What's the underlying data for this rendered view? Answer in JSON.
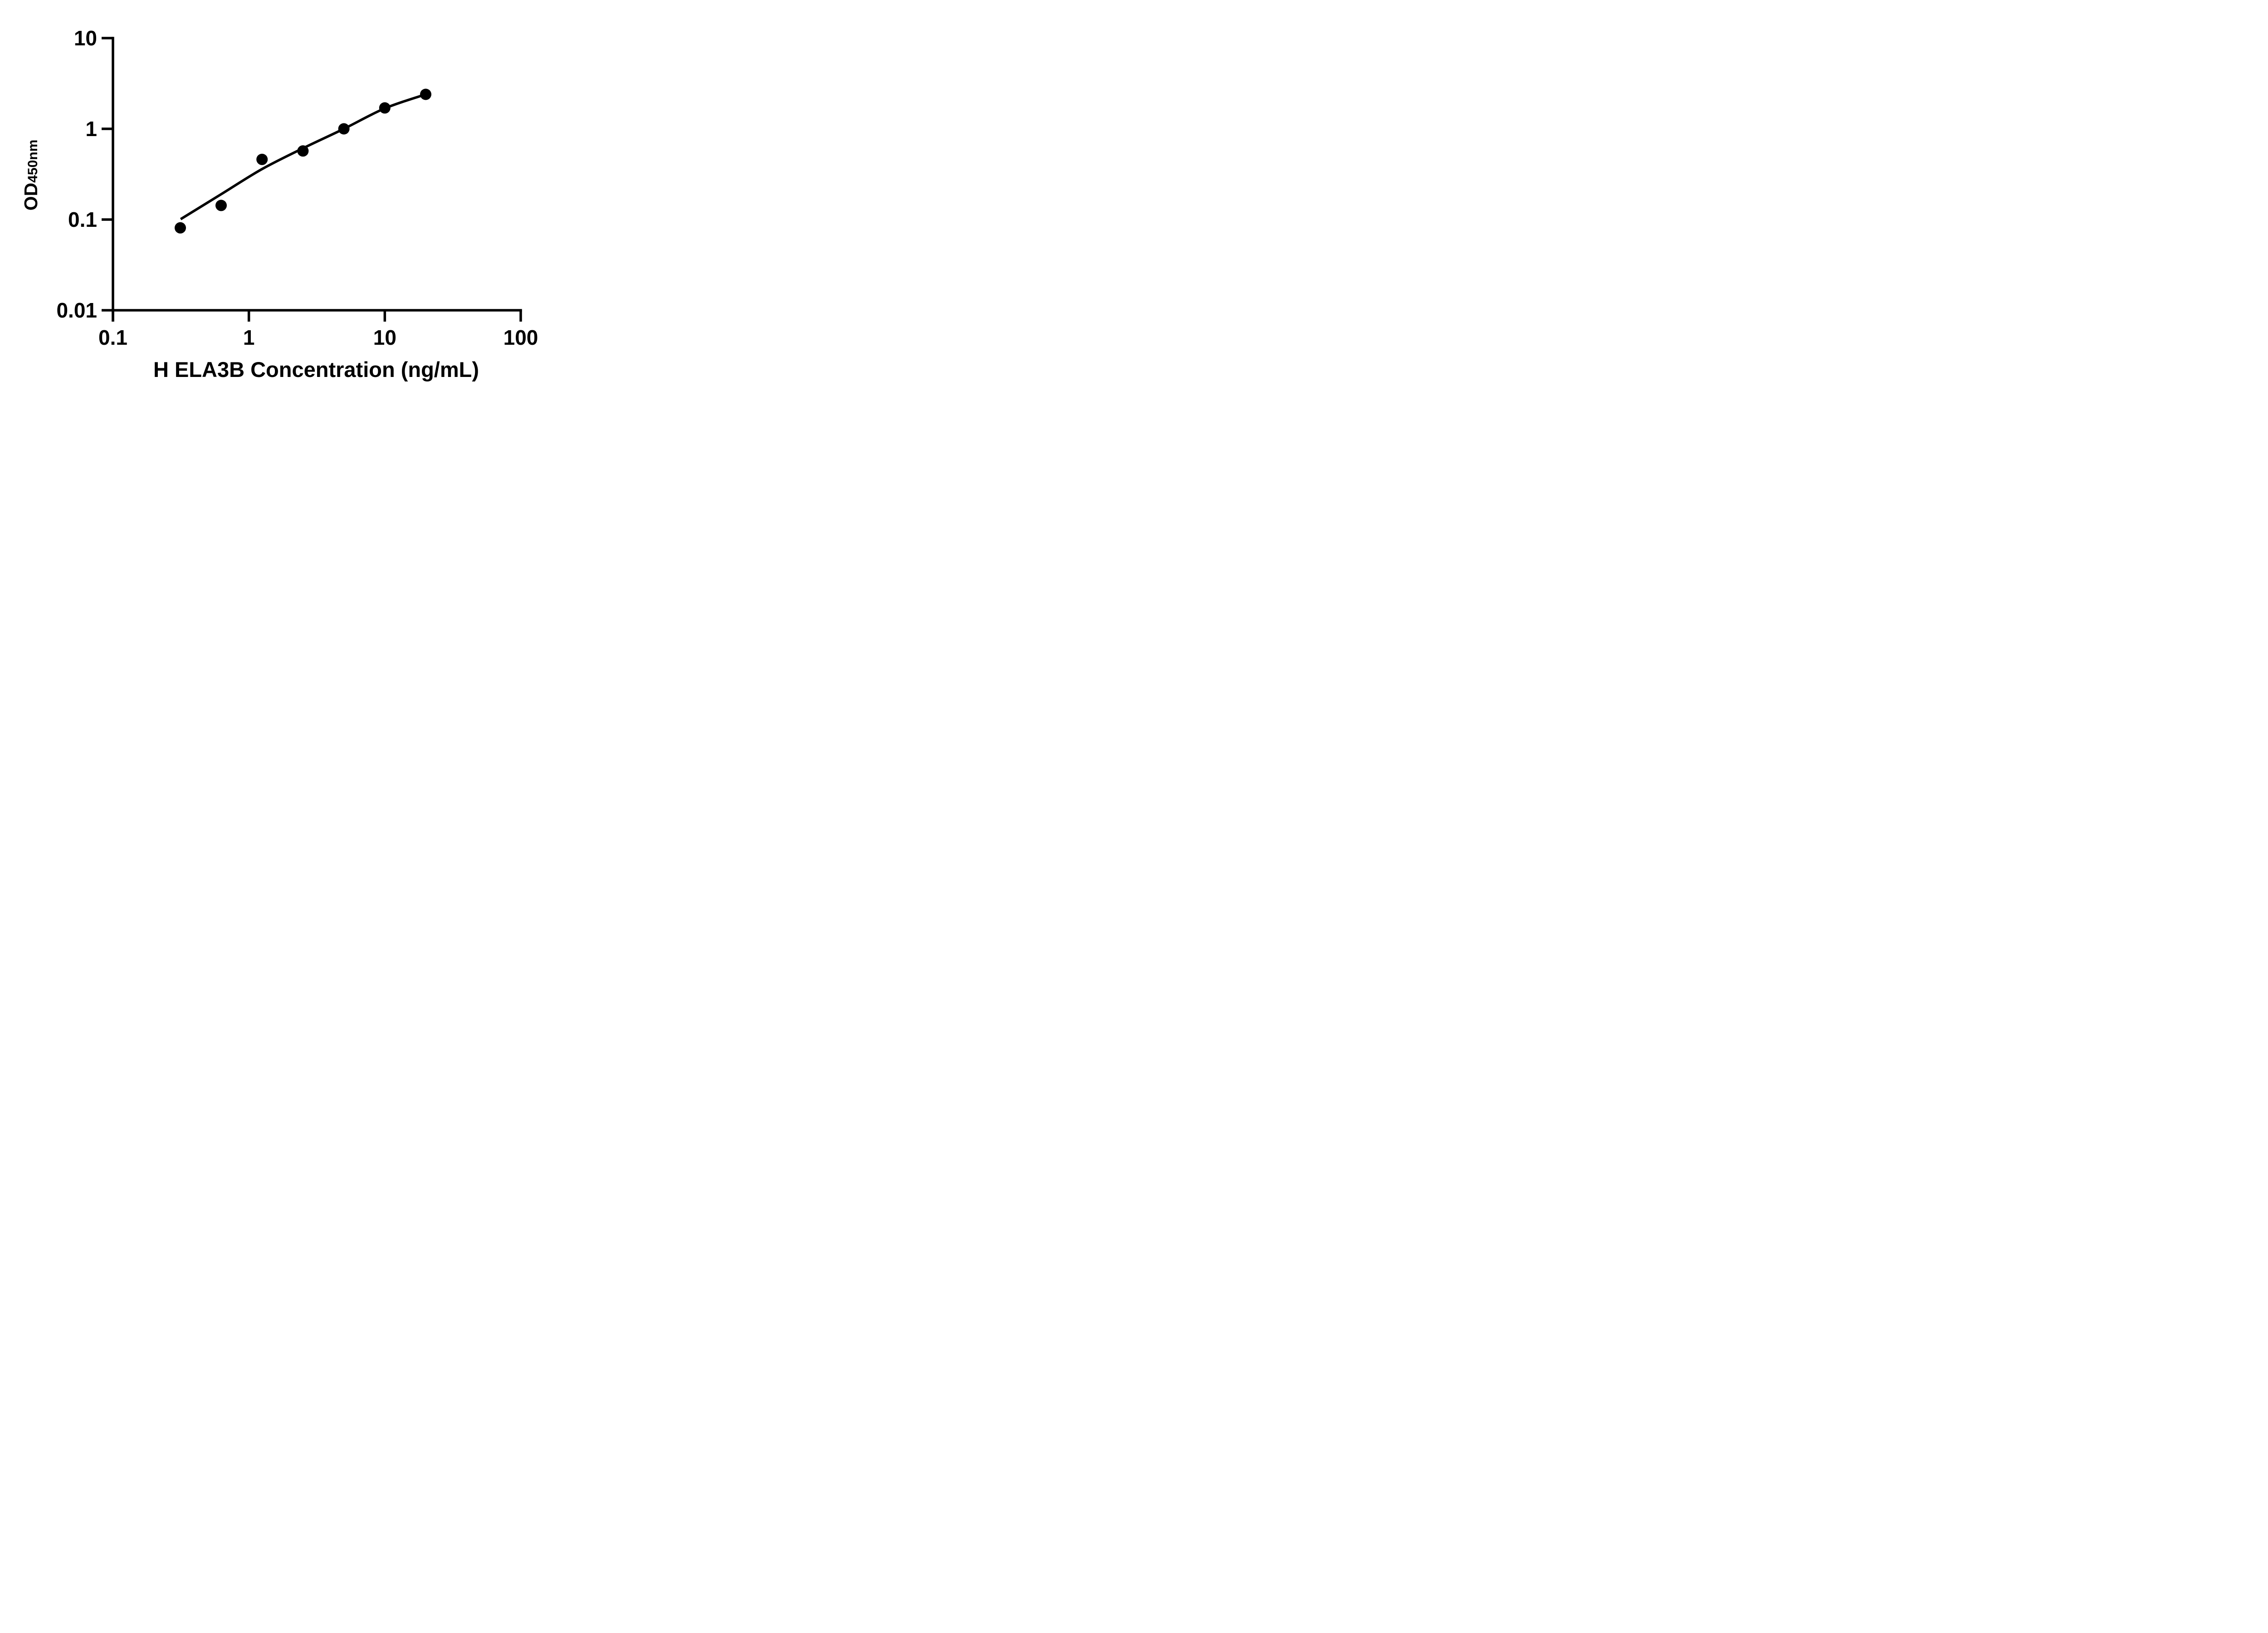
{
  "chart_data": {
    "type": "scatter",
    "title": "",
    "xlabel": "H ELA3B Concentration (ng/mL)",
    "ylabel_main": "OD",
    "ylabel_sub": "450nm",
    "x_scale": "log10",
    "y_scale": "log10",
    "xlim": [
      0.1,
      100
    ],
    "ylim": [
      0.01,
      10
    ],
    "x_ticks": [
      0.1,
      1,
      10,
      100
    ],
    "x_tick_labels": [
      "0.1",
      "1",
      "10",
      "100"
    ],
    "y_ticks": [
      0.01,
      0.1,
      1,
      10
    ],
    "y_tick_labels": [
      "0.01",
      "0.1",
      "1",
      "10"
    ],
    "grid": false,
    "legend_position": "none",
    "marker": {
      "shape": "circle",
      "color": "#000000"
    },
    "line": {
      "color": "#000000",
      "style": "solid"
    },
    "points": [
      {
        "x": 0.313,
        "y": 0.081
      },
      {
        "x": 0.625,
        "y": 0.143
      },
      {
        "x": 1.25,
        "y": 0.46
      },
      {
        "x": 2.5,
        "y": 0.57
      },
      {
        "x": 5,
        "y": 1.0
      },
      {
        "x": 10,
        "y": 1.7
      },
      {
        "x": 20,
        "y": 2.4
      }
    ],
    "fit_curve_points": [
      {
        "x": 0.315,
        "y": 0.101
      },
      {
        "x": 0.625,
        "y": 0.19
      },
      {
        "x": 1.25,
        "y": 0.36
      },
      {
        "x": 2.5,
        "y": 0.61
      },
      {
        "x": 5,
        "y": 1.0
      },
      {
        "x": 10,
        "y": 1.68
      },
      {
        "x": 20,
        "y": 2.4
      }
    ]
  }
}
